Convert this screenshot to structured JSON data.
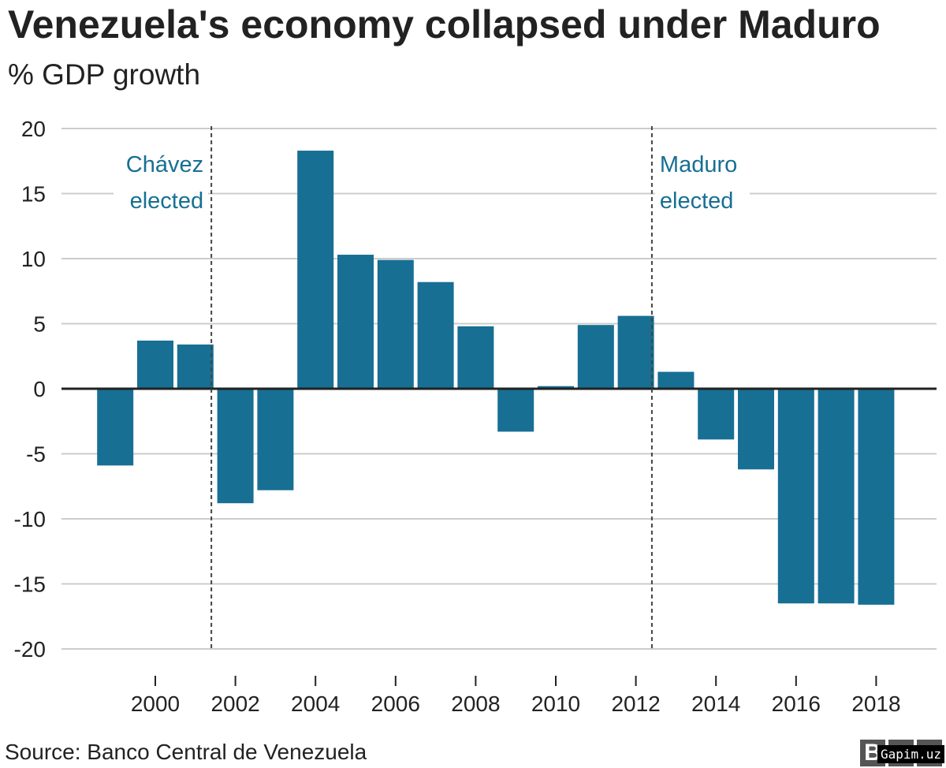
{
  "chart_data": {
    "type": "bar",
    "title": "Venezuela's economy collapsed under Maduro",
    "subtitle": "% GDP growth",
    "x": [
      1999,
      2000,
      2001,
      2002,
      2003,
      2004,
      2005,
      2006,
      2007,
      2008,
      2009,
      2010,
      2011,
      2012,
      2013,
      2014,
      2015,
      2016,
      2017,
      2018
    ],
    "values": [
      -5.9,
      3.7,
      3.4,
      -8.8,
      -7.8,
      18.3,
      10.3,
      9.9,
      8.2,
      4.8,
      -3.3,
      0.2,
      4.9,
      5.6,
      1.3,
      -3.9,
      -6.2,
      -16.5,
      -16.5,
      -16.6
    ],
    "ylim": [
      -20,
      20
    ],
    "yticks": [
      20,
      15,
      10,
      5,
      0,
      -5,
      -10,
      -15,
      -20
    ],
    "xticks": [
      2000,
      2002,
      2004,
      2006,
      2008,
      2010,
      2012,
      2014,
      2016,
      2018
    ],
    "grid": true,
    "bar_color": "#176f94",
    "annotations": [
      {
        "x": 2001.4,
        "lines": [
          "Chávez",
          "elected"
        ]
      },
      {
        "x": 2012.4,
        "lines": [
          "Maduro",
          "elected"
        ]
      }
    ]
  },
  "source": "Source: Banco Central de Venezuela",
  "logo": "BBC",
  "watermark": "Gapim.uz"
}
